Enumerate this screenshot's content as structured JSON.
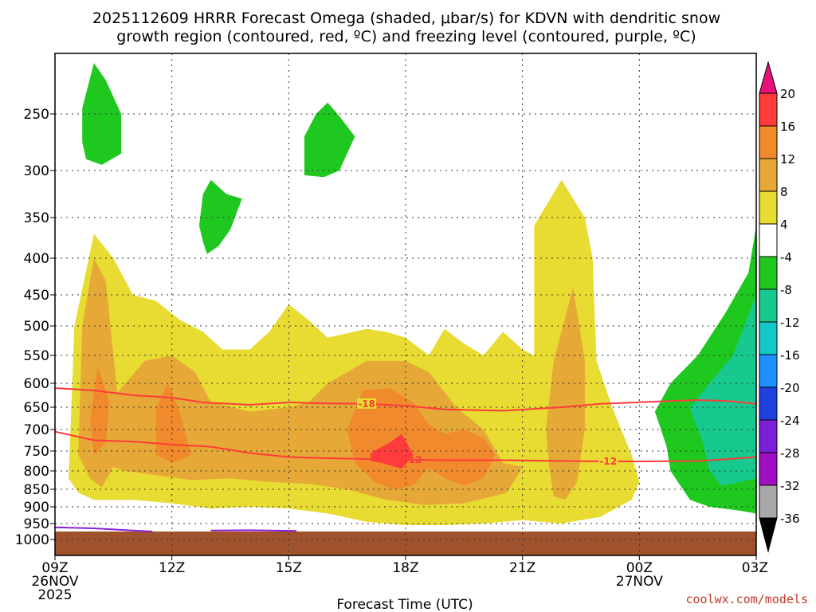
{
  "chart_data": {
    "type": "heatmap",
    "title_line1": "2025112609 HRRR Forecast Omega (shaded, μbar/s) for KDVN with dendritic snow",
    "title_line2": "growth region (contoured, red, ºC) and freezing level (contoured, purple, ºC)",
    "xlabel": "Forecast Time (UTC)",
    "ylabel": "",
    "x_ticks": [
      {
        "hour": 0,
        "label": "09Z",
        "sub1": "26NOV",
        "sub2": "2025"
      },
      {
        "hour": 3,
        "label": "12Z",
        "sub1": "",
        "sub2": ""
      },
      {
        "hour": 6,
        "label": "15Z",
        "sub1": "",
        "sub2": ""
      },
      {
        "hour": 9,
        "label": "18Z",
        "sub1": "",
        "sub2": ""
      },
      {
        "hour": 12,
        "label": "21Z",
        "sub1": "",
        "sub2": ""
      },
      {
        "hour": 15,
        "label": "00Z",
        "sub1": "27NOV",
        "sub2": ""
      },
      {
        "hour": 18,
        "label": "03Z",
        "sub1": "",
        "sub2": ""
      }
    ],
    "x_range_hours": [
      0,
      18
    ],
    "y_ticks_hpa": [
      250,
      300,
      350,
      400,
      450,
      500,
      550,
      600,
      650,
      700,
      750,
      800,
      850,
      900,
      950,
      1000
    ],
    "y_range_hpa": [
      200,
      1012
    ],
    "colorbar": {
      "levels": [
        20,
        16,
        12,
        8,
        4,
        -4,
        -8,
        -12,
        -16,
        -20,
        -24,
        -28,
        -32,
        -36
      ],
      "colors": [
        "#e8117a",
        "#ff3b3b",
        "#f08a2c",
        "#e6a836",
        "#e8dc32",
        "#ffffff",
        "#1ec81e",
        "#17c98e",
        "#12c8c8",
        "#1e90ff",
        "#2040e0",
        "#7a20d8",
        "#a010c0",
        "#a8a8a8",
        "#000000"
      ]
    },
    "omega_regions": [
      {
        "class": "4 to 8",
        "color": "#e8dc32",
        "pts": [
          [
            0.35,
            820
          ],
          [
            0.5,
            500
          ],
          [
            1,
            370
          ],
          [
            1.5,
            400
          ],
          [
            2,
            450
          ],
          [
            2.6,
            460
          ],
          [
            3.2,
            490
          ],
          [
            3.8,
            510
          ],
          [
            4.3,
            540
          ],
          [
            5,
            540
          ],
          [
            5.5,
            510
          ],
          [
            6,
            465
          ],
          [
            6.5,
            490
          ],
          [
            7,
            520
          ],
          [
            8,
            505
          ],
          [
            8.5,
            510
          ],
          [
            9,
            520
          ],
          [
            9.6,
            550
          ],
          [
            10,
            505
          ],
          [
            10.5,
            530
          ],
          [
            11,
            550
          ],
          [
            11.5,
            510
          ],
          [
            12,
            540
          ],
          [
            12.3,
            550
          ],
          [
            12.3,
            360
          ],
          [
            13,
            310
          ],
          [
            13.6,
            350
          ],
          [
            13.8,
            400
          ],
          [
            13.9,
            560
          ],
          [
            14.3,
            650
          ],
          [
            14.8,
            760
          ],
          [
            15.0,
            830
          ],
          [
            14.8,
            880
          ],
          [
            14,
            930
          ],
          [
            13,
            950
          ],
          [
            12,
            940
          ],
          [
            11,
            950
          ],
          [
            10,
            955
          ],
          [
            9,
            955
          ],
          [
            8,
            945
          ],
          [
            7,
            920
          ],
          [
            6,
            905
          ],
          [
            5,
            900
          ],
          [
            4,
            905
          ],
          [
            3,
            890
          ],
          [
            2,
            880
          ],
          [
            1,
            880
          ],
          [
            0.6,
            860
          ]
        ]
      },
      {
        "class": "8 to 12",
        "color": "#e6a836",
        "pts": [
          [
            0.6,
            760
          ],
          [
            0.7,
            500
          ],
          [
            1.0,
            400
          ],
          [
            1.3,
            430
          ],
          [
            1.6,
            620
          ],
          [
            2.3,
            560
          ],
          [
            3,
            550
          ],
          [
            3.6,
            580
          ],
          [
            4,
            640
          ],
          [
            4.3,
            645
          ],
          [
            5,
            660
          ],
          [
            6,
            650
          ],
          [
            6.5,
            640
          ],
          [
            7,
            600
          ],
          [
            8,
            560
          ],
          [
            9,
            560
          ],
          [
            9.6,
            580
          ],
          [
            10.3,
            650
          ],
          [
            11,
            700
          ],
          [
            11.5,
            780
          ],
          [
            12,
            790
          ],
          [
            11.6,
            860
          ],
          [
            10.5,
            890
          ],
          [
            9.5,
            895
          ],
          [
            8.5,
            880
          ],
          [
            7.5,
            850
          ],
          [
            6.5,
            835
          ],
          [
            5.5,
            830
          ],
          [
            4.5,
            820
          ],
          [
            3.5,
            825
          ],
          [
            2.5,
            810
          ],
          [
            1.8,
            800
          ],
          [
            1.5,
            790
          ],
          [
            1.2,
            845
          ],
          [
            0.9,
            820
          ]
        ]
      },
      {
        "class": "8 to 12",
        "color": "#e6a836",
        "pts": [
          [
            12.6,
            700
          ],
          [
            12.8,
            560
          ],
          [
            13.3,
            440
          ],
          [
            13.6,
            560
          ],
          [
            13.6,
            700
          ],
          [
            13.4,
            830
          ],
          [
            13.1,
            880
          ],
          [
            12.8,
            870
          ],
          [
            12.7,
            800
          ]
        ]
      },
      {
        "class": "12 to 16",
        "color": "#f08a2c",
        "pts": [
          [
            0.9,
            680
          ],
          [
            1.1,
            570
          ],
          [
            1.4,
            640
          ],
          [
            1.3,
            730
          ],
          [
            1.0,
            760
          ]
        ]
      },
      {
        "class": "12 to 16",
        "color": "#f08a2c",
        "pts": [
          [
            2.6,
            650
          ],
          [
            2.9,
            600
          ],
          [
            3.2,
            660
          ],
          [
            3.5,
            760
          ],
          [
            3.0,
            780
          ],
          [
            2.6,
            760
          ]
        ]
      },
      {
        "class": "12 to 16",
        "color": "#f08a2c",
        "pts": [
          [
            7.5,
            700
          ],
          [
            7.9,
            615
          ],
          [
            8.6,
            610
          ],
          [
            9.2,
            640
          ],
          [
            9.6,
            690
          ],
          [
            10,
            710
          ],
          [
            10.5,
            700
          ],
          [
            11,
            720
          ],
          [
            11.3,
            760
          ],
          [
            11,
            820
          ],
          [
            10.5,
            840
          ],
          [
            10,
            820
          ],
          [
            9.6,
            790
          ],
          [
            9.2,
            840
          ],
          [
            8.7,
            850
          ],
          [
            8.2,
            830
          ],
          [
            7.7,
            780
          ]
        ]
      },
      {
        "class": "16 to 20",
        "color": "#ff3b3b",
        "pts": [
          [
            8.1,
            755
          ],
          [
            8.6,
            730
          ],
          [
            8.9,
            710
          ],
          [
            9.2,
            760
          ],
          [
            8.9,
            795
          ],
          [
            8.4,
            780
          ],
          [
            8.1,
            775
          ]
        ]
      },
      {
        "class": "-4 to -8",
        "color": "#1ec81e",
        "pts": [
          [
            0.7,
            245
          ],
          [
            1,
            205
          ],
          [
            1.3,
            220
          ],
          [
            1.7,
            250
          ],
          [
            1.7,
            285
          ],
          [
            1.2,
            295
          ],
          [
            0.8,
            290
          ],
          [
            0.7,
            275
          ]
        ]
      },
      {
        "class": "-4 to -8",
        "color": "#1ec81e",
        "pts": [
          [
            3.7,
            360
          ],
          [
            3.8,
            325
          ],
          [
            4.0,
            310
          ],
          [
            4.4,
            325
          ],
          [
            4.8,
            330
          ],
          [
            4.5,
            365
          ],
          [
            4.2,
            385
          ],
          [
            3.9,
            395
          ],
          [
            3.8,
            380
          ]
        ]
      },
      {
        "class": "-4 to -8",
        "color": "#1ec81e",
        "pts": [
          [
            6.4,
            305
          ],
          [
            6.4,
            270
          ],
          [
            6.7,
            250
          ],
          [
            7.0,
            240
          ],
          [
            7.3,
            252
          ],
          [
            7.7,
            270
          ],
          [
            7.3,
            300
          ],
          [
            6.9,
            307
          ]
        ]
      },
      {
        "class": "-4 to -8",
        "color": "#1ec81e",
        "pts": [
          [
            15.4,
            660
          ],
          [
            15.8,
            600
          ],
          [
            16.5,
            550
          ],
          [
            17.2,
            480
          ],
          [
            17.8,
            420
          ],
          [
            18.05,
            360
          ],
          [
            18.05,
            920
          ],
          [
            17.5,
            910
          ],
          [
            16.8,
            900
          ],
          [
            16.3,
            880
          ],
          [
            15.8,
            800
          ],
          [
            15.7,
            740
          ]
        ]
      },
      {
        "class": "-8 to -12",
        "color": "#17c98e",
        "pts": [
          [
            16.3,
            650
          ],
          [
            16.8,
            600
          ],
          [
            17.4,
            550
          ],
          [
            18.05,
            450
          ],
          [
            18.05,
            820
          ],
          [
            17.6,
            830
          ],
          [
            17.1,
            840
          ],
          [
            16.8,
            800
          ],
          [
            16.6,
            720
          ],
          [
            16.4,
            680
          ]
        ]
      }
    ],
    "dgz_contours": [
      {
        "label": "-18",
        "color": "#ff3b3b",
        "label_hour": 8.0,
        "pts": [
          [
            0,
            610
          ],
          [
            1,
            615
          ],
          [
            2,
            625
          ],
          [
            3,
            630
          ],
          [
            3.8,
            640
          ],
          [
            5,
            645
          ],
          [
            6,
            640
          ],
          [
            7,
            642
          ],
          [
            8,
            643
          ],
          [
            9,
            647
          ],
          [
            10,
            655
          ],
          [
            11.5,
            658
          ],
          [
            13,
            650
          ],
          [
            14,
            643
          ],
          [
            15.5,
            638
          ],
          [
            16.5,
            635
          ],
          [
            17.3,
            637
          ],
          [
            18.05,
            643
          ]
        ]
      },
      {
        "label": "-12",
        "color": "#ff3b3b",
        "label_hour": 14.2,
        "pts": [
          [
            0,
            705
          ],
          [
            1,
            725
          ],
          [
            2,
            728
          ],
          [
            3,
            735
          ],
          [
            4,
            740
          ],
          [
            5,
            755
          ],
          [
            6,
            765
          ],
          [
            7,
            768
          ],
          [
            8,
            770
          ],
          [
            9,
            772
          ],
          [
            10,
            773
          ],
          [
            11.5,
            773
          ],
          [
            13,
            775
          ],
          [
            14.2,
            776
          ],
          [
            15.2,
            776
          ],
          [
            16.5,
            775
          ],
          [
            17.3,
            770
          ],
          [
            18.05,
            765
          ]
        ]
      },
      {
        "label": "-12",
        "color": "#ff3b3b",
        "label_hour": 9.2,
        "pts": []
      }
    ],
    "freezing_level_contours": [
      {
        "color": "#8a1ed8",
        "pts": [
          [
            0,
            962
          ],
          [
            1,
            965
          ],
          [
            2,
            972
          ],
          [
            2.5,
            975
          ]
        ]
      },
      {
        "color": "#8a1ed8",
        "pts": [
          [
            4.0,
            972
          ],
          [
            5,
            971
          ],
          [
            6.2,
            973
          ]
        ]
      }
    ],
    "ground_pressure_hpa": 975,
    "ground_color": "#a0522d"
  },
  "watermark": "coolwx.com/models"
}
